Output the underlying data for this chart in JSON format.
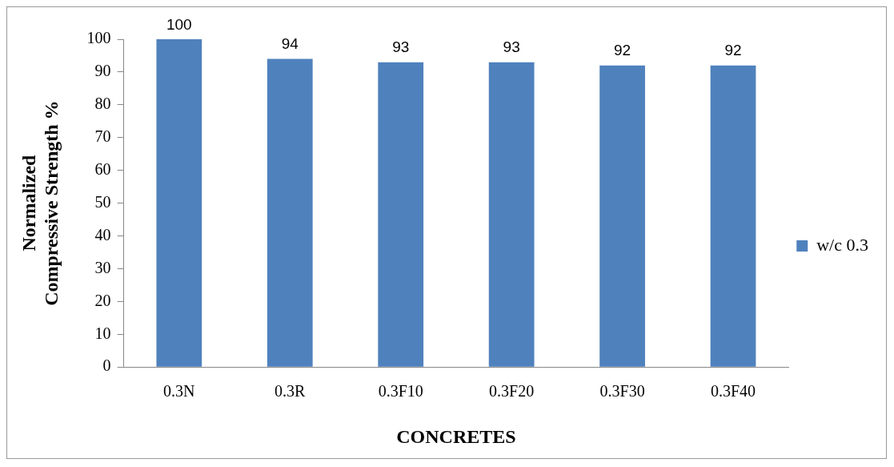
{
  "chart_data": {
    "type": "bar",
    "xlabel": "CONCRETES",
    "ylabel": "Normalized Compressive Strength %",
    "categories": [
      "0.3N",
      "0.3R",
      "0.3F10",
      "0.3F20",
      "0.3F30",
      "0.3F40"
    ],
    "series": [
      {
        "name": "w/c 0.3",
        "color": "#4f81bd",
        "values": [
          100,
          94,
          93,
          93,
          92,
          92
        ]
      }
    ],
    "ylim": [
      0,
      100
    ],
    "yticks": [
      0,
      10,
      20,
      30,
      40,
      50,
      60,
      70,
      80,
      90,
      100
    ],
    "grid": false,
    "legend": "right",
    "data_labels": true
  }
}
